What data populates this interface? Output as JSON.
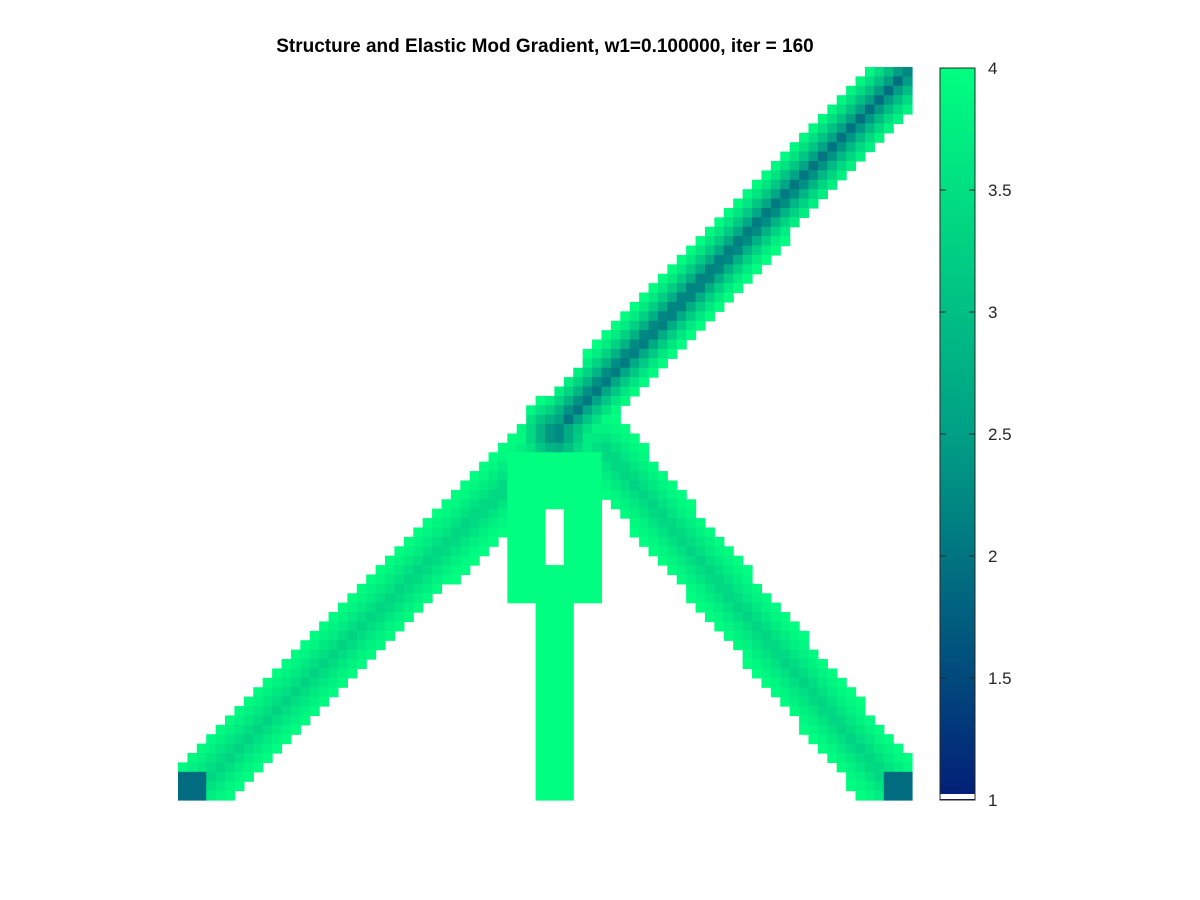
{
  "chart_data": {
    "type": "heatmap",
    "title": "Structure and Elastic Mod Gradient, w1=0.100000, iter = 160",
    "xlabel": "",
    "ylabel": "",
    "axes_visible": false,
    "colorbar": {
      "position": "right",
      "range": [
        1,
        4
      ],
      "ticks": [
        4,
        3.5,
        3,
        2.5,
        2,
        1.5,
        1
      ],
      "tick_labels": [
        "4",
        "3.5",
        "3",
        "2.5",
        "2",
        "1.5",
        "1"
      ],
      "colormap": [
        "#021e78",
        "#00a085",
        "#00ff80"
      ]
    },
    "field": {
      "description_free": true,
      "background_color": "#ffffff",
      "members": [
        {
          "from": [
            0.02,
            0.01
          ],
          "to": [
            0.5,
            0.48
          ],
          "width": 0.085,
          "core_value": 3.3,
          "edge_value": 4.0
        },
        {
          "from": [
            0.98,
            0.01
          ],
          "to": [
            0.58,
            0.48
          ],
          "width": 0.085,
          "core_value": 3.3,
          "edge_value": 4.0
        },
        {
          "from": [
            0.53,
            0.52
          ],
          "to": [
            0.99,
            0.99
          ],
          "width": 0.085,
          "core_value": 1.9,
          "edge_value": 4.0
        },
        {
          "from": [
            0.515,
            0.0
          ],
          "to": [
            0.515,
            0.3
          ],
          "width": 0.05,
          "core_value": 4.0,
          "edge_value": 4.0
        }
      ],
      "joint_value": 1.95,
      "corner_values": [
        1.9,
        1.9
      ]
    }
  }
}
